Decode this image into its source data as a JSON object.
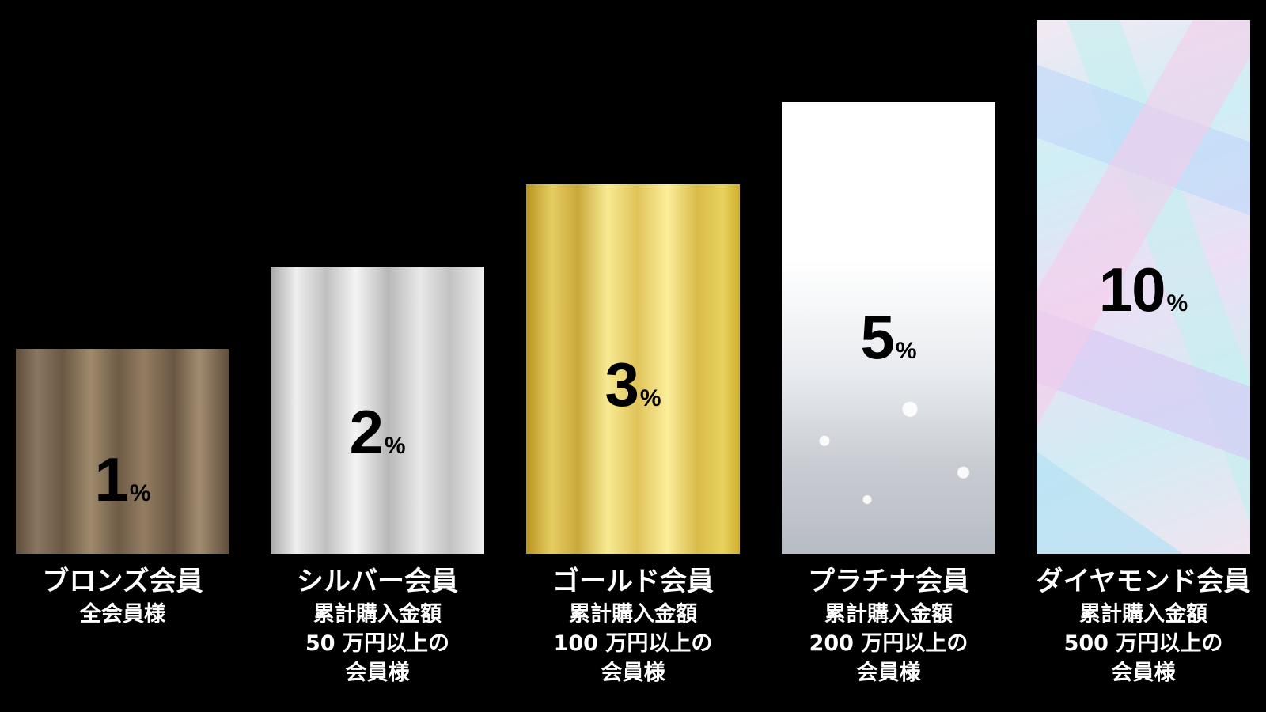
{
  "chart_data": {
    "type": "bar",
    "categories": [
      "ブロンズ会員",
      "シルバー会員",
      "ゴールド会員",
      "プラチナ会員",
      "ダイヤモンド会員"
    ],
    "values": [
      1,
      2,
      3,
      5,
      10
    ],
    "unit": "%",
    "tiers": [
      {
        "name": "ブロンズ会員",
        "value": "1",
        "unit": "%",
        "condition": [
          "全会員様"
        ],
        "style": "bronze"
      },
      {
        "name": "シルバー会員",
        "value": "2",
        "unit": "%",
        "condition": [
          "累計購入金額",
          "50 万円以上の",
          "会員様"
        ],
        "style": "silver"
      },
      {
        "name": "ゴールド会員",
        "value": "3",
        "unit": "%",
        "condition": [
          "累計購入金額",
          "100 万円以上の",
          "会員様"
        ],
        "style": "gold"
      },
      {
        "name": "プラチナ会員",
        "value": "5",
        "unit": "%",
        "condition": [
          "累計購入金額",
          "200 万円以上の",
          "会員様"
        ],
        "style": "platinum"
      },
      {
        "name": "ダイヤモンド会員",
        "value": "10",
        "unit": "%",
        "condition": [
          "累計購入金額",
          "500 万円以上の",
          "会員様"
        ],
        "style": "diamond"
      }
    ],
    "background_color": "#000000",
    "grid": false
  }
}
